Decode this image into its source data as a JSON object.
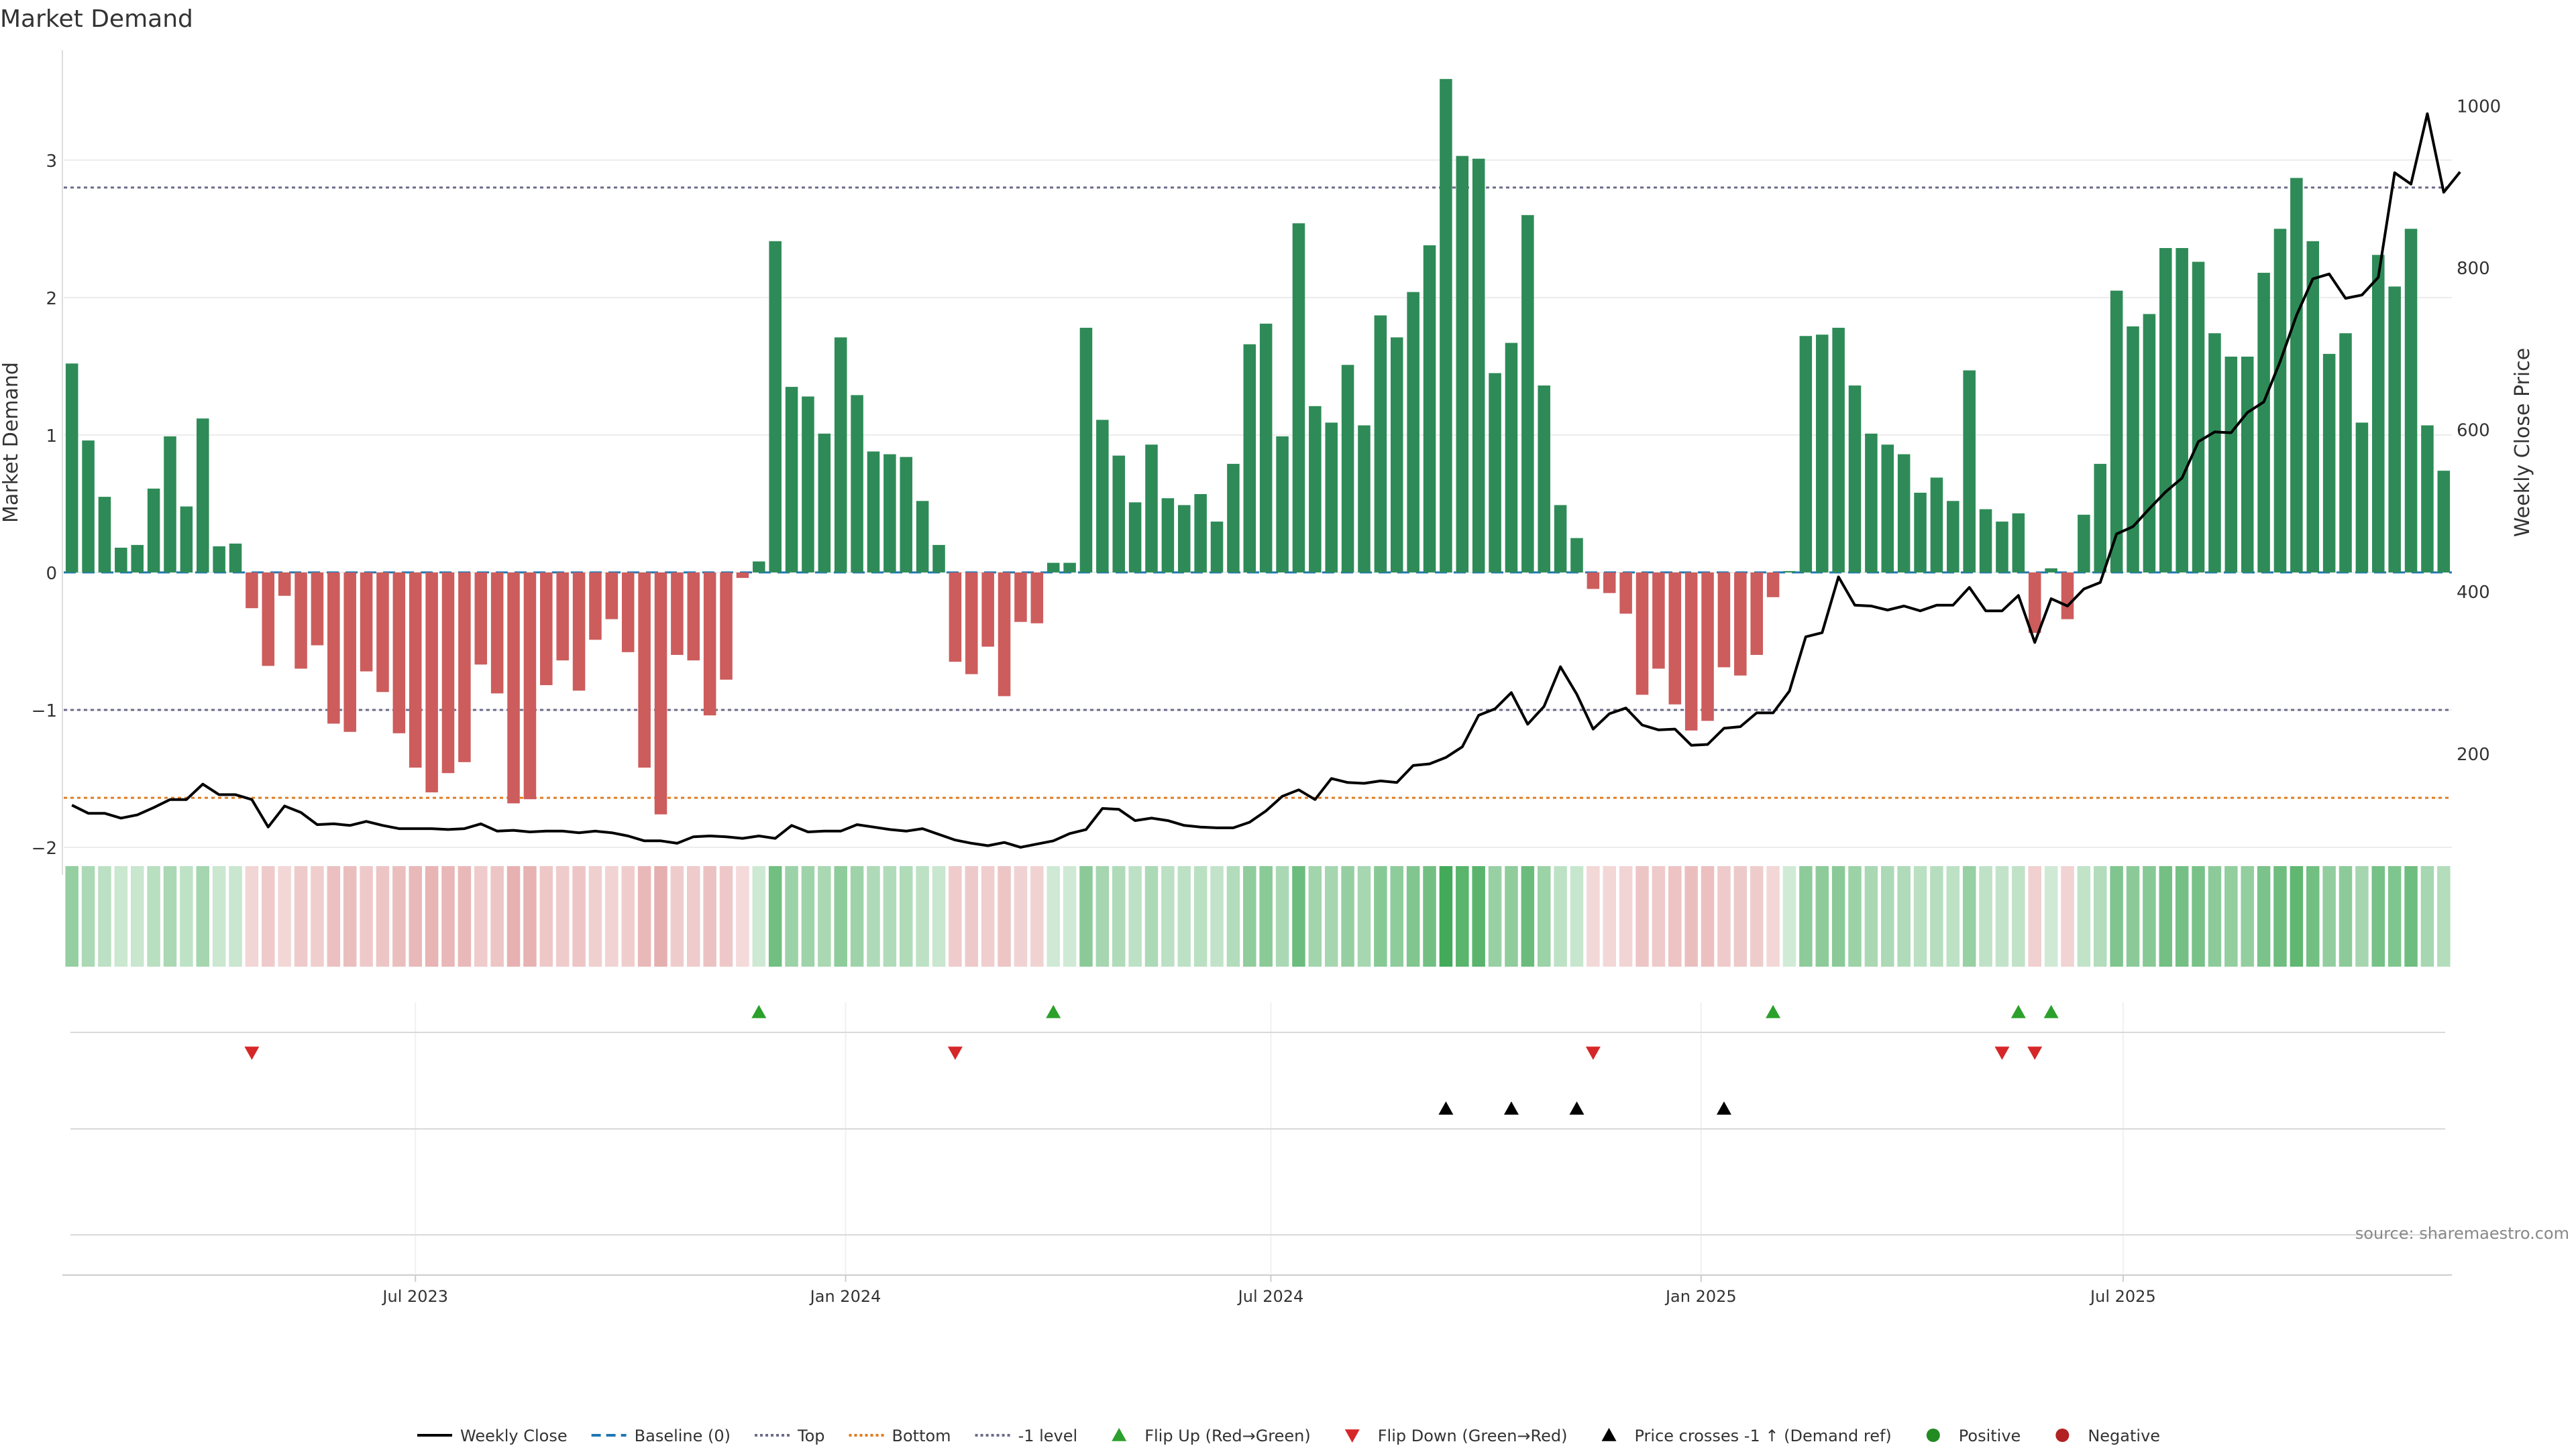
{
  "chart_data": {
    "type": "bar",
    "title": "Market Demand",
    "ylabel": "Market Demand",
    "y2label": "Weekly Close Price",
    "ylim": [
      -2.2,
      3.75
    ],
    "yticks": [
      3,
      2,
      1,
      0,
      -1,
      -2
    ],
    "ytick_labels": [
      "3",
      "2",
      "1",
      "0",
      "−1",
      "−2"
    ],
    "y2lim": [
      50,
      1060
    ],
    "y2ticks": [
      1000,
      800,
      600,
      400,
      200
    ],
    "y2tick_labels": [
      "1000",
      "800",
      "600",
      "400",
      "200"
    ],
    "xlim": [
      0,
      144
    ],
    "xticks": [
      {
        "label": "Jul 2023",
        "pos": 21.5
      },
      {
        "label": "Jan 2024",
        "pos": 47.8
      },
      {
        "label": "Jul 2024",
        "pos": 73.8
      },
      {
        "label": "Jan 2025",
        "pos": 100.1
      },
      {
        "label": "Jul 2025",
        "pos": 125.9
      }
    ],
    "reference_lines": [
      {
        "name": "Baseline (0)",
        "value": 0,
        "color": "#1f77b4",
        "dash": "dashed"
      },
      {
        "name": "Top",
        "value": 2.8,
        "color": "#6b6b8a",
        "dash": "dotted"
      },
      {
        "name": "Bottom",
        "value": -1.64,
        "color": "#e07b20",
        "dash": "dotted"
      },
      {
        "name": "-1 level",
        "value": -1,
        "color": "#6b6b8a",
        "dash": "dotted"
      }
    ],
    "series": [
      {
        "name": "Market Demand",
        "kind": "bar",
        "values": [
          1.52,
          0.96,
          0.55,
          0.18,
          0.2,
          0.61,
          0.99,
          0.48,
          1.12,
          0.19,
          0.21,
          -0.26,
          -0.68,
          -0.17,
          -0.7,
          -0.53,
          -1.1,
          -1.16,
          -0.72,
          -0.87,
          -1.17,
          -1.42,
          -1.6,
          -1.46,
          -1.38,
          -0.67,
          -0.88,
          -1.68,
          -1.65,
          -0.82,
          -0.64,
          -0.86,
          -0.49,
          -0.34,
          -0.58,
          -1.42,
          -1.76,
          -0.6,
          -0.64,
          -1.04,
          -0.78,
          -0.04,
          0.08,
          2.41,
          1.35,
          1.28,
          1.01,
          1.71,
          1.29,
          0.88,
          0.86,
          0.84,
          0.52,
          0.2,
          -0.65,
          -0.74,
          -0.54,
          -0.9,
          -0.36,
          -0.37,
          0.07,
          0.07,
          1.78,
          1.11,
          0.85,
          0.51,
          0.93,
          0.54,
          0.49,
          0.57,
          0.37,
          0.79,
          1.66,
          1.81,
          0.99,
          2.54,
          1.21,
          1.09,
          1.51,
          1.07,
          1.87,
          1.71,
          2.04,
          2.38,
          3.59,
          3.03,
          3.01,
          1.45,
          1.67,
          2.6,
          1.36,
          0.49,
          0.25,
          -0.12,
          -0.15,
          -0.3,
          -0.89,
          -0.7,
          -0.96,
          -1.15,
          -1.08,
          -0.69,
          -0.75,
          -0.6,
          -0.18,
          0.01,
          1.72,
          1.73,
          1.78,
          1.36,
          1.01,
          0.93,
          0.86,
          0.58,
          0.69,
          0.52,
          1.47,
          0.46,
          0.37,
          0.43,
          -0.44,
          0.03,
          -0.34,
          0.42,
          0.79,
          2.05,
          1.79,
          1.88,
          2.36,
          2.36,
          2.26,
          1.74,
          1.57,
          1.57,
          2.18,
          2.5,
          2.87,
          2.41,
          1.59,
          1.74,
          1.09,
          2.31,
          2.08,
          2.5,
          1.07,
          0.74
        ],
        "positive_color": "#2e8b57",
        "negative_color": "#cd5c5c"
      },
      {
        "name": "Weekly Close",
        "kind": "line",
        "axis": "right",
        "color": "#000000",
        "values": [
          136,
          126,
          126,
          120,
          124,
          133,
          143,
          143,
          162,
          149,
          149,
          143,
          109,
          135,
          127,
          112,
          113,
          111,
          116,
          111,
          107,
          107,
          107,
          106,
          107,
          113,
          104,
          105,
          103,
          104,
          104,
          102,
          104,
          102,
          98,
          92,
          92,
          89,
          97,
          98,
          97,
          95,
          98,
          95,
          111,
          103,
          104,
          104,
          112,
          109,
          106,
          104,
          107,
          100,
          93,
          89,
          86,
          90,
          84,
          88,
          92,
          101,
          106,
          132,
          131,
          117,
          120,
          117,
          111,
          109,
          108,
          108,
          115,
          129,
          147,
          155,
          143,
          169,
          164,
          163,
          166,
          164,
          185,
          187,
          195,
          208,
          247,
          255,
          275,
          236,
          258,
          307,
          273,
          230,
          249,
          256,
          235,
          229,
          230,
          210,
          211,
          231,
          233,
          250,
          250,
          277,
          344,
          349,
          418,
          383,
          382,
          377,
          382,
          376,
          383,
          383,
          405,
          376,
          376,
          395,
          337,
          391,
          382,
          403,
          411,
          471,
          480,
          502,
          523,
          540,
          585,
          597,
          596,
          621,
          634,
          684,
          741,
          786,
          792,
          762,
          766,
          788,
          917,
          903,
          990,
          893,
          918
        ]
      }
    ],
    "strip": {
      "name": "Demand intensity strip",
      "values": [
        1.52,
        0.96,
        0.55,
        0.18,
        0.2,
        0.61,
        0.99,
        0.48,
        1.12,
        0.19,
        0.21,
        -0.26,
        -0.68,
        -0.17,
        -0.7,
        -0.53,
        -1.1,
        -1.16,
        -0.72,
        -0.87,
        -1.17,
        -1.42,
        -1.6,
        -1.46,
        -1.38,
        -0.67,
        -0.88,
        -1.68,
        -1.65,
        -0.82,
        -0.64,
        -0.86,
        -0.49,
        -0.34,
        -0.58,
        -1.42,
        -1.76,
        -0.6,
        -0.64,
        -1.04,
        -0.78,
        -0.04,
        0.08,
        2.41,
        1.35,
        1.28,
        1.01,
        1.71,
        1.29,
        0.88,
        0.86,
        0.84,
        0.52,
        0.2,
        -0.65,
        -0.74,
        -0.54,
        -0.9,
        -0.36,
        -0.37,
        0.07,
        0.07,
        1.78,
        1.11,
        0.85,
        0.51,
        0.93,
        0.54,
        0.49,
        0.57,
        0.37,
        0.79,
        1.66,
        1.81,
        0.99,
        2.54,
        1.21,
        1.09,
        1.51,
        1.07,
        1.87,
        1.71,
        2.04,
        2.38,
        3.59,
        3.03,
        3.01,
        1.45,
        1.67,
        2.6,
        1.36,
        0.49,
        0.25,
        -0.12,
        -0.15,
        -0.3,
        -0.89,
        -0.7,
        -0.96,
        -1.15,
        -1.08,
        -0.69,
        -0.75,
        -0.6,
        -0.18,
        0.01,
        1.72,
        1.73,
        1.78,
        1.36,
        1.01,
        0.93,
        0.86,
        0.58,
        0.69,
        0.52,
        1.47,
        0.46,
        0.37,
        0.43,
        -0.44,
        0.03,
        -0.34,
        0.42,
        0.79,
        2.05,
        1.79,
        1.88,
        2.36,
        2.36,
        2.26,
        1.74,
        1.57,
        1.57,
        2.18,
        2.5,
        2.87,
        2.41,
        1.59,
        1.74,
        1.09,
        2.31,
        2.08,
        2.5,
        1.07,
        0.74
      ]
    },
    "events": {
      "flip_up": {
        "name": "Flip Up (Red→Green)",
        "color": "#2ca02c",
        "x": [
          42,
          60,
          104,
          119,
          121
        ]
      },
      "flip_down": {
        "name": "Flip Down (Green→Red)",
        "color": "#d62728",
        "x": [
          11,
          54,
          93,
          118,
          120
        ]
      },
      "price_cross": {
        "name": "Price crosses -1 ↑ (Demand ref)",
        "color": "#000000",
        "x": [
          84,
          88,
          92,
          101
        ]
      }
    },
    "legend_position": "bottom-center",
    "legend": [
      {
        "label": "Weekly Close",
        "kind": "line",
        "color": "#000000",
        "dash": "solid"
      },
      {
        "label": "Baseline (0)",
        "kind": "line",
        "color": "#1f77b4",
        "dash": "dashed"
      },
      {
        "label": "Top",
        "kind": "line",
        "color": "#6b6b8a",
        "dash": "dotted"
      },
      {
        "label": "Bottom",
        "kind": "line",
        "color": "#e07b20",
        "dash": "dotted"
      },
      {
        "label": "-1 level",
        "kind": "line",
        "color": "#6b6b8a",
        "dash": "dotted"
      },
      {
        "label": "Flip Up (Red→Green)",
        "kind": "tri-up",
        "color": "#2ca02c"
      },
      {
        "label": "Flip Down (Green→Red)",
        "kind": "tri-down",
        "color": "#d62728"
      },
      {
        "label": "Price crosses -1 ↑ (Demand ref)",
        "kind": "tri-up",
        "color": "#000000"
      },
      {
        "label": "Positive",
        "kind": "dot",
        "color": "#228b22"
      },
      {
        "label": "Negative",
        "kind": "dot",
        "color": "#b22222"
      }
    ],
    "source": "source: sharemaestro.com"
  }
}
